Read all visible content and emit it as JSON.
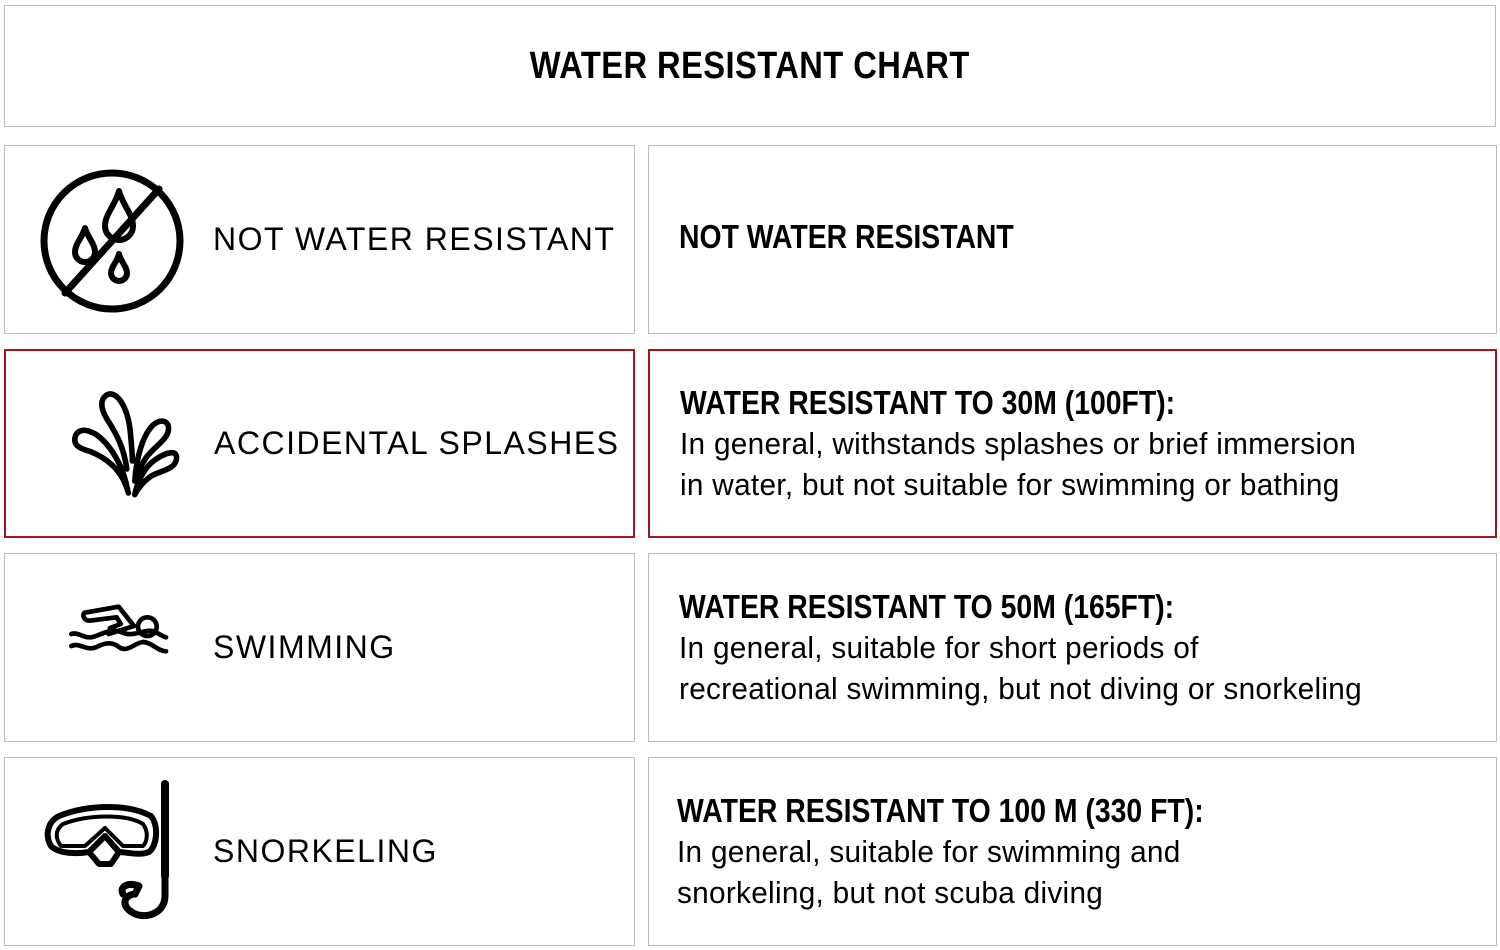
{
  "title": "WATER RESISTANT CHART",
  "colors": {
    "highlight_border": "#a3161c",
    "border": "#bdbdbd"
  },
  "rows": [
    {
      "icon": "no-water-drops-icon",
      "label": "NOT WATER RESISTANT",
      "heading": "NOT WATER RESISTANT",
      "description": [],
      "highlighted": false
    },
    {
      "icon": "splash-icon",
      "label": "ACCIDENTAL SPLASHES",
      "heading": "WATER RESISTANT TO 30M (100FT):",
      "description": [
        "In general, withstands splashes or brief immersion",
        "in water, but not suitable for swimming or bathing"
      ],
      "highlighted": true
    },
    {
      "icon": "swimmer-icon",
      "label": "SWIMMING",
      "heading": "WATER RESISTANT TO 50M (165FT):",
      "description": [
        "In general, suitable for short periods of",
        "recreational swimming, but not diving or snorkeling"
      ],
      "highlighted": false
    },
    {
      "icon": "snorkel-mask-icon",
      "label": "SNORKELING",
      "heading": "WATER RESISTANT TO 100 M (330 FT):",
      "description": [
        "In general, suitable for swimming and",
        "snorkeling, but not scuba diving"
      ],
      "highlighted": false
    }
  ]
}
